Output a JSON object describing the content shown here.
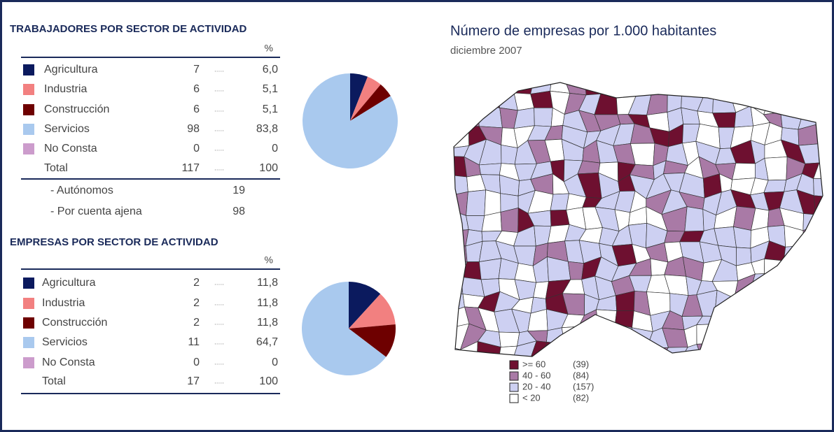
{
  "chart_data": [
    {
      "type": "pie",
      "title": "TRABAJADORES POR SECTOR DE ACTIVIDAD",
      "unit_header": "%",
      "categories": [
        "Agricultura",
        "Industria",
        "Construcción",
        "Servicios",
        "No Consta"
      ],
      "counts": [
        7,
        6,
        6,
        98,
        0
      ],
      "values": [
        6.0,
        5.1,
        5.1,
        83.8,
        0
      ],
      "value_labels": [
        "6,0",
        "5,1",
        "5,1",
        "83,8",
        "0"
      ],
      "colors": [
        "#0b1a5e",
        "#f28080",
        "#6e0000",
        "#a9c9ee",
        "#cc9ccc"
      ],
      "total": {
        "label": "Total",
        "count": 117,
        "value": 100
      },
      "extra": [
        {
          "label": "- Autónomos",
          "count": 19
        },
        {
          "label": "- Por cuenta ajena",
          "count": 98
        }
      ]
    },
    {
      "type": "pie",
      "title": "EMPRESAS POR SECTOR DE ACTIVIDAD",
      "unit_header": "%",
      "categories": [
        "Agricultura",
        "Industria",
        "Construcción",
        "Servicios",
        "No Consta"
      ],
      "counts": [
        2,
        2,
        2,
        11,
        0
      ],
      "values": [
        11.8,
        11.8,
        11.8,
        64.7,
        0
      ],
      "value_labels": [
        "11,8",
        "11,8",
        "11,8",
        "64,7",
        "0"
      ],
      "colors": [
        "#0b1a5e",
        "#f28080",
        "#6e0000",
        "#a9c9ee",
        "#cc9ccc"
      ],
      "total": {
        "label": "Total",
        "count": 17,
        "value": 100
      }
    }
  ],
  "map": {
    "title": "Número de empresas por 1.000 habitantes",
    "subtitle": "diciembre 2007",
    "legend": [
      {
        "label": ">= 60",
        "count": "(39)",
        "color": "#6e1030"
      },
      {
        "label": "40 - 60",
        "count": "(84)",
        "color": "#a97aa6"
      },
      {
        "label": "20 - 40",
        "count": "(157)",
        "color": "#cdd0f2"
      },
      {
        "label": "< 20",
        "count": "(82)",
        "color": "#ffffff"
      }
    ]
  }
}
